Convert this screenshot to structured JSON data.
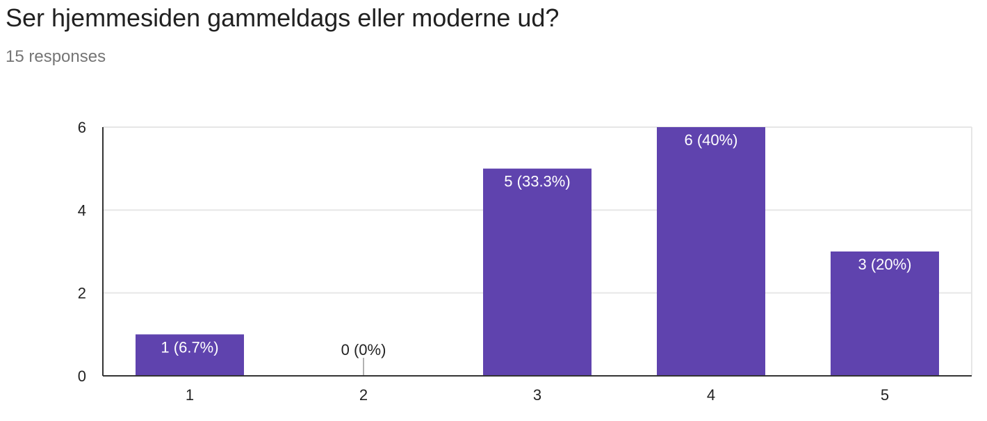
{
  "question": {
    "title": "Ser hjemmesiden gammeldags eller moderne ud?",
    "responses": "15 responses"
  },
  "colors": {
    "bar": "#5f43ae",
    "grid": "#e6e6e6",
    "axis": "#333333",
    "tick_text": "#222222",
    "label_inside": "#ffffff",
    "label_outside": "#222222"
  },
  "chart_data": {
    "type": "bar",
    "categories": [
      "1",
      "2",
      "3",
      "4",
      "5"
    ],
    "values": [
      1,
      0,
      5,
      6,
      3
    ],
    "data_labels": [
      "1 (6.7%)",
      "0 (0%)",
      "5 (33.3%)",
      "6 (40%)",
      "3 (20%)"
    ],
    "ylim": [
      0,
      6
    ],
    "yticks": [
      0,
      2,
      4,
      6
    ],
    "grid": true,
    "xlabel": "",
    "ylabel": ""
  }
}
